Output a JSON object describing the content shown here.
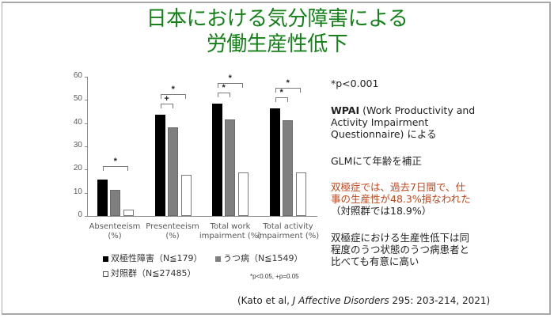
{
  "title": {
    "line1": "日本における気分障害による",
    "line2": "労働生産性低下"
  },
  "chart_data": {
    "type": "bar",
    "title": "",
    "categories": [
      "Absenteeism (%)",
      "Presenteeism (%)",
      "Total work impairment (%)",
      "Total activity impairment (%)"
    ],
    "category_lines": [
      [
        "Absenteeism",
        "(%)"
      ],
      [
        "Presenteeism",
        "(%)"
      ],
      [
        "Total work",
        "impairment (%)"
      ],
      [
        "Total activity",
        "impairment (%)"
      ]
    ],
    "series": [
      {
        "name": "双極性障害（N≦179）",
        "color": "#000000",
        "values": [
          15.8,
          43.6,
          48.3,
          46.4
        ]
      },
      {
        "name": "うつ病（N≦1549）",
        "color": "#7f7f7f",
        "values": [
          11.3,
          38.1,
          41.5,
          41.2
        ]
      },
      {
        "name": "対照群（N≦27485）",
        "color": "#ffffff",
        "values": [
          2.7,
          17.6,
          18.9,
          18.9
        ]
      }
    ],
    "yticks": [
      0,
      10,
      20,
      30,
      40,
      50,
      60
    ],
    "ylim": [
      0,
      60
    ],
    "xlabel": "",
    "ylabel": "",
    "grid": false,
    "legend_position": "bottom",
    "significance": [
      {
        "category": 0,
        "from": 0,
        "to": 2,
        "mark": "*"
      },
      {
        "category": 1,
        "from": 0,
        "to": 1,
        "mark": "+"
      },
      {
        "category": 1,
        "from": 0,
        "to": 2,
        "mark": "*"
      },
      {
        "category": 2,
        "from": 0,
        "to": 1,
        "mark": "*"
      },
      {
        "category": 2,
        "from": 0,
        "to": 2,
        "mark": "*"
      },
      {
        "category": 3,
        "from": 0,
        "to": 1,
        "mark": "*"
      },
      {
        "category": 3,
        "from": 0,
        "to": 2,
        "mark": "*"
      }
    ],
    "footnote": "*p<0.05, +p=0.05"
  },
  "side": {
    "pvalue": "*p<0.001",
    "wpai_bold": "WPAI",
    "wpai_line1": " (Work Productivity and",
    "wpai_line2": "Activity Impairment",
    "wpai_line3": "Questionnaire) による",
    "glm": "GLMにて年齢を補正",
    "red_line1": "双極症では、過去7日間で、仕",
    "red_line2": "事の生産性が48.3%損なわれた",
    "control_note": "（対照群では18.9%）",
    "conclusion_line1": "双極症における生産性低下は同",
    "conclusion_line2": "程度のうつ状態のうつ病患者と",
    "conclusion_line3": "比べても有意に高い"
  },
  "citation": {
    "prefix": "(Kato et al, ",
    "journal": "J Affective Disorders",
    "suffix": " 295: 203-214, 2021)"
  },
  "colors": {
    "title": "#16801a",
    "highlight": "#c0461c"
  }
}
